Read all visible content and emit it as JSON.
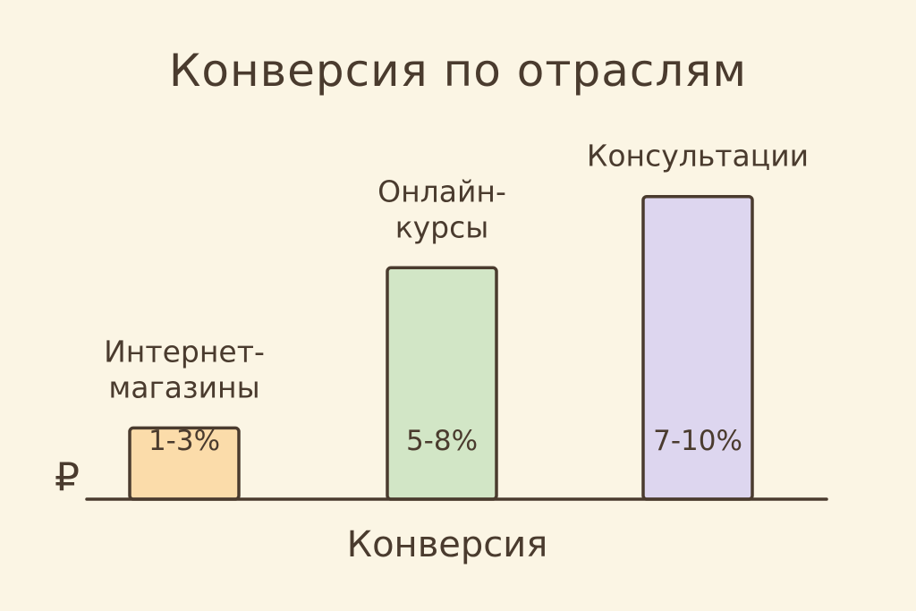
{
  "chart_data": {
    "type": "bar",
    "title": "Конверсия по отраслям",
    "xlabel": "Конверсия",
    "ylabel": "₽",
    "categories": [
      [
        "Интернет-",
        "магазины"
      ],
      [
        "Онлайн-",
        "курсы"
      ],
      [
        "Консультации"
      ]
    ],
    "value_labels": [
      "1-3%",
      "5-8%",
      "7-10%"
    ],
    "values": [
      2,
      6.5,
      8.5
    ],
    "ylim": [
      0,
      10
    ],
    "grid": false,
    "legend": "none",
    "colors": [
      "#fbdcaa",
      "#d2e6c6",
      "#ddd6ef"
    ],
    "axis_color": "#4a3b2e",
    "background": "#fbf5e4"
  }
}
